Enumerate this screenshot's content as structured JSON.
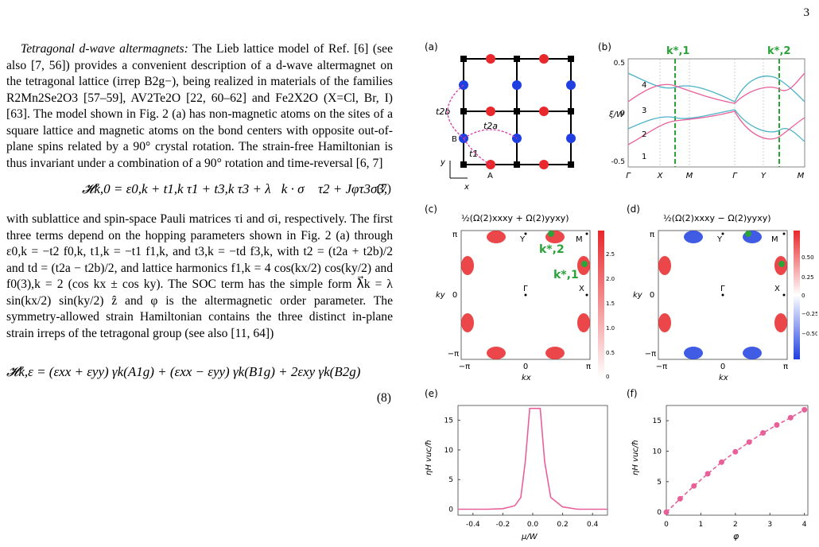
{
  "page_number": "3",
  "text": {
    "p1_head": "Tetragonal d-wave altermagnets:",
    "p1": " The Lieb lattice model of Ref. [6] (see also [7, 56]) provides a convenient description of a d-wave altermagnet on the tetragonal lattice (irrep B2g−), being realized in materials of the families R2Mn2Se2O3 [57–59], AV2Te2O [22, 60–62] and Fe2X2O (X=Cl, Br, I) [63]. The model shown in Fig. 2 (a) has non-magnetic atoms on the sites of a square lattice and magnetic atoms on the bond centers with opposite out-of-plane spins related by a 90° crystal rotation. The strain-free Hamiltonian is thus invariant under a combination of a 90° rotation and time-reversal [6, 7]",
    "eq7": "𝓗k,0 = ε0,k + t1,k τ1 + t3,k τ3 + λ⃗k · σ⃗ τ2 + Jφτ3σ3,",
    "eq7_num": "(7)",
    "p2": "with sublattice and spin-space Pauli matrices τi and σi, respectively. The first three terms depend on the hopping parameters shown in Fig. 2 (a) through ε0,k = −t2 f0,k, t1,k = −t1 f1,k, and t3,k = −td f3,k, with t2 = (t2a + t2b)/2 and td = (t2a − t2b)/2, and lattice harmonics f1,k = 4 cos(kx/2) cos(ky/2) and f0(3),k = 2 (cos kx ± cos ky). The SOC term has the simple form λ⃗k = λ sin(kx/2) sin(ky/2) ẑ and φ is the altermagnetic order parameter. The symmetry-allowed strain Hamiltonian contains the three distinct in-plane strain irreps of the tetragonal group (see also [11, 64])",
    "eq8": "𝓗k,ε = (εxx + εyy) γk(A1g) + (εxx − εyy) γk(B1g) + 2εxy γk(B2g)",
    "eq8_num": "(8)"
  },
  "figure": {
    "panel_a": {
      "label": "(a)",
      "labels": {
        "t2b": "t2b",
        "t2a": "t2a",
        "t1": "t1",
        "B": "B",
        "A": "A",
        "x": "x",
        "y": "y"
      }
    },
    "panel_b": {
      "label": "(b)",
      "kstar1": "k*,1",
      "kstar2": "k*,2",
      "ylabel": "ξ/W",
      "yticks": [
        "0.5",
        "0",
        "-0.5"
      ],
      "xticks": [
        "Γ",
        "X",
        "M",
        "Γ",
        "Y",
        "M"
      ],
      "band_labels": [
        "4",
        "3",
        "2",
        "1"
      ]
    },
    "panel_c": {
      "label": "(c)",
      "title": "½(Ω(2)xxxy + Ω(2)yyxy)",
      "xlabel": "kx",
      "ylabel": "ky",
      "ticks": [
        "−π",
        "0",
        "π"
      ],
      "points": [
        "Y",
        "M",
        "Γ",
        "X"
      ],
      "kstar2": "k*,2",
      "kstar1": "k*,1",
      "cbar_ticks": [
        "2.5",
        "2.0",
        "1.5",
        "1.0",
        "0.5",
        "0"
      ]
    },
    "panel_d": {
      "label": "(d)",
      "title": "½(Ω(2)xxxy − Ω(2)yyxy)",
      "xlabel": "kx",
      "ylabel": "ky",
      "ticks": [
        "−π",
        "0",
        "π"
      ],
      "points": [
        "Y",
        "M",
        "Γ",
        "X"
      ],
      "cbar_ticks": [
        "0.50",
        "0.25",
        "0",
        "−0.25",
        "−0.50"
      ]
    },
    "panel_e": {
      "label": "(e)",
      "xlabel": "μ/W",
      "ylabel": "ηH vuc/ħ",
      "xticks": [
        "-0.4",
        "-0.2",
        "0.0",
        "0.2",
        "0.4"
      ],
      "yticks": [
        "0",
        "5",
        "10",
        "15"
      ]
    },
    "panel_f": {
      "label": "(f)",
      "xlabel": "φ",
      "ylabel": "ηH vuc/ħ",
      "xticks": [
        "0",
        "1",
        "2",
        "3",
        "4"
      ],
      "yticks": [
        "0",
        "5",
        "10",
        "15"
      ]
    }
  },
  "chart_data": [
    {
      "type": "line",
      "panel": "e",
      "x": [
        -0.5,
        -0.4,
        -0.3,
        -0.2,
        -0.12,
        -0.08,
        -0.05,
        -0.02,
        0.0,
        0.02,
        0.05,
        0.08,
        0.12,
        0.2,
        0.3,
        0.4,
        0.5
      ],
      "y": [
        0,
        0,
        0,
        0.1,
        0.6,
        2,
        8,
        17,
        17,
        17,
        17,
        8,
        2,
        0.4,
        0,
        0,
        0
      ],
      "xlim": [
        -0.5,
        0.5
      ],
      "ylim": [
        -1,
        17.5
      ]
    },
    {
      "type": "scatter",
      "panel": "f",
      "x": [
        0,
        0.4,
        0.8,
        1.2,
        1.6,
        2.0,
        2.4,
        2.8,
        3.2,
        3.6,
        4.0
      ],
      "y": [
        0,
        2.2,
        4.3,
        6.3,
        8.2,
        9.9,
        11.5,
        13,
        14.3,
        15.5,
        16.8
      ],
      "xlim": [
        0,
        4.1
      ],
      "ylim": [
        -0.5,
        17.5
      ]
    }
  ],
  "colors": {
    "red": "#e8282b",
    "blue": "#1f3fe0",
    "green": "#2aa339",
    "pink": "#e8609a",
    "teal": "#4bb3c7"
  }
}
